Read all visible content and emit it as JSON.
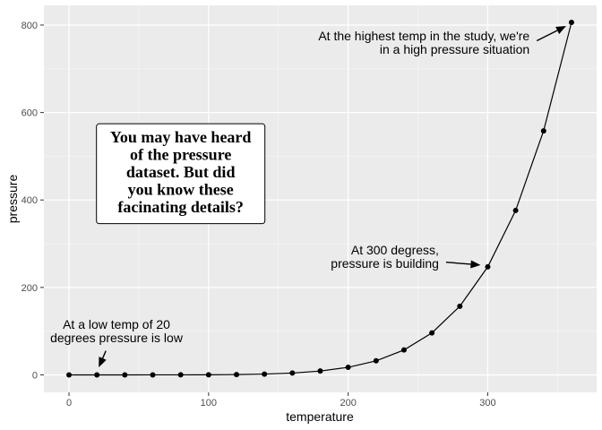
{
  "chart_data": {
    "type": "line",
    "title": "",
    "xlabel": "temperature",
    "ylabel": "pressure",
    "xlim": [
      -18,
      378
    ],
    "ylim": [
      -40,
      845
    ],
    "x_ticks": [
      0,
      100,
      200,
      300
    ],
    "y_ticks": [
      0,
      200,
      400,
      600,
      800
    ],
    "x_tick_labels": [
      "0",
      "100",
      "200",
      "300"
    ],
    "y_tick_labels": [
      "0",
      "200",
      "400",
      "600",
      "800"
    ],
    "grid": true,
    "x": [
      0,
      20,
      40,
      60,
      80,
      100,
      120,
      140,
      160,
      180,
      200,
      220,
      240,
      260,
      280,
      300,
      320,
      340,
      360
    ],
    "y": [
      0.0002,
      0.0012,
      0.006,
      0.03,
      0.09,
      0.27,
      0.75,
      1.85,
      4.2,
      8.8,
      17.3,
      32.1,
      57,
      96,
      157,
      247,
      376,
      558,
      806
    ],
    "annotations": [
      {
        "lines": [
          "At the highest temp in the study, we're",
          "in a high pressure situation"
        ],
        "align": "right",
        "anchor_data": [
          360,
          806
        ],
        "text_data": [
          330,
          760
        ]
      },
      {
        "lines": [
          "At 300 degress,",
          "pressure is building"
        ],
        "align": "right",
        "anchor_data": [
          300,
          247
        ],
        "text_data": [
          265,
          270
        ]
      },
      {
        "lines": [
          "At a low temp of 20",
          "degrees pressure is low"
        ],
        "align": "middle",
        "anchor_data": [
          20,
          5
        ],
        "text_data": [
          34,
          100
        ]
      }
    ],
    "label_box": {
      "lines": [
        "You may have heard",
        "of the pressure",
        "dataset. But did",
        "you know these",
        "facinating details?"
      ],
      "center_data": [
        80,
        460
      ]
    }
  }
}
